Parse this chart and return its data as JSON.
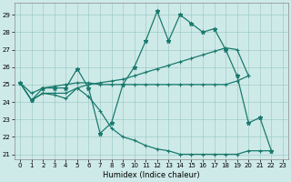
{
  "xlabel": "Humidex (Indice chaleur)",
  "bg_color": "#ceeae8",
  "grid_color": "#a0ccc8",
  "line_color": "#1a7a6e",
  "xlim": [
    -0.5,
    23.5
  ],
  "ylim": [
    20.7,
    29.7
  ],
  "yticks": [
    21,
    22,
    23,
    24,
    25,
    26,
    27,
    28,
    29
  ],
  "xticks": [
    0,
    1,
    2,
    3,
    4,
    5,
    6,
    7,
    8,
    9,
    10,
    11,
    12,
    13,
    14,
    15,
    16,
    17,
    18,
    19,
    20,
    21,
    22,
    23
  ],
  "series": [
    {
      "x": [
        0,
        1,
        2,
        3,
        4,
        5,
        6,
        7,
        8,
        9,
        10,
        11,
        12,
        13,
        14,
        15,
        16,
        17,
        18,
        19,
        20,
        21,
        22
      ],
      "y": [
        25.1,
        24.1,
        24.8,
        24.8,
        24.8,
        25.9,
        24.8,
        22.2,
        22.8,
        25.0,
        26.0,
        27.5,
        29.2,
        27.5,
        29.0,
        28.5,
        28.0,
        28.2,
        27.0,
        25.5,
        22.8,
        23.1,
        21.2
      ],
      "marker": "*",
      "ms": 3.5,
      "lw": 0.9
    },
    {
      "x": [
        0,
        1,
        2,
        3,
        4,
        5,
        6,
        7,
        8,
        9,
        10,
        11,
        12,
        13,
        14,
        15,
        16,
        17,
        18,
        19,
        20
      ],
      "y": [
        25.1,
        24.1,
        24.5,
        24.5,
        24.5,
        24.8,
        25.0,
        25.1,
        25.2,
        25.3,
        25.5,
        25.7,
        25.9,
        26.1,
        26.3,
        26.5,
        26.7,
        26.9,
        27.1,
        27.0,
        25.5
      ],
      "marker": "+",
      "ms": 3.0,
      "lw": 0.9
    },
    {
      "x": [
        0,
        1,
        2,
        3,
        4,
        5,
        6,
        7,
        8,
        9,
        10,
        11,
        12,
        13,
        14,
        15,
        16,
        17,
        18,
        19,
        20
      ],
      "y": [
        25.1,
        24.5,
        24.8,
        24.9,
        25.0,
        25.1,
        25.1,
        25.0,
        25.0,
        25.0,
        25.0,
        25.0,
        25.0,
        25.0,
        25.0,
        25.0,
        25.0,
        25.0,
        25.0,
        25.2,
        25.5
      ],
      "marker": "+",
      "ms": 3.0,
      "lw": 0.9
    },
    {
      "x": [
        0,
        1,
        2,
        3,
        4,
        5,
        6,
        7,
        8,
        9,
        10,
        11,
        12,
        13,
        14,
        15,
        16,
        17,
        18,
        19,
        20,
        21,
        22
      ],
      "y": [
        25.1,
        24.1,
        24.5,
        24.4,
        24.2,
        24.8,
        24.3,
        23.5,
        22.5,
        22.0,
        21.8,
        21.5,
        21.3,
        21.2,
        21.0,
        21.0,
        21.0,
        21.0,
        21.0,
        21.0,
        21.2,
        21.2,
        21.2
      ],
      "marker": "+",
      "ms": 3.0,
      "lw": 0.9
    }
  ]
}
